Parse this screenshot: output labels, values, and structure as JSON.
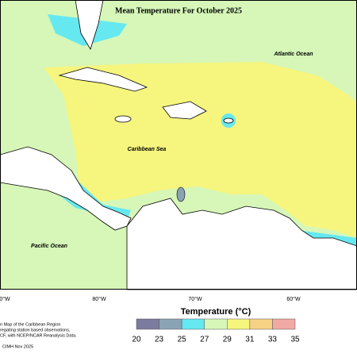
{
  "title": "Mean Temperature For October 2025",
  "ocean_labels": {
    "atlantic": "Atlantic Ocean",
    "caribbean": "Caribbean Sea",
    "pacific": "Pacific Ocean"
  },
  "longitude_labels": [
    "0°W",
    "80°W",
    "70°W",
    "60°W"
  ],
  "legend": {
    "title": "Temperature (°C)",
    "bounds": [
      20,
      23,
      25,
      27,
      29,
      31,
      33,
      35
    ],
    "colors": [
      "#7b7a9f",
      "#8aa3b5",
      "#66e8f0",
      "#d6f7b8",
      "#f6f57e",
      "#f7d184",
      "#f0aaa3"
    ]
  },
  "credits": [
    "n Map of the Caribbean Region",
    "regating station based observations,",
    "CF, with NCEP/NCAR Reanalysis Data.",
    "CIMH Nov 2025"
  ]
}
